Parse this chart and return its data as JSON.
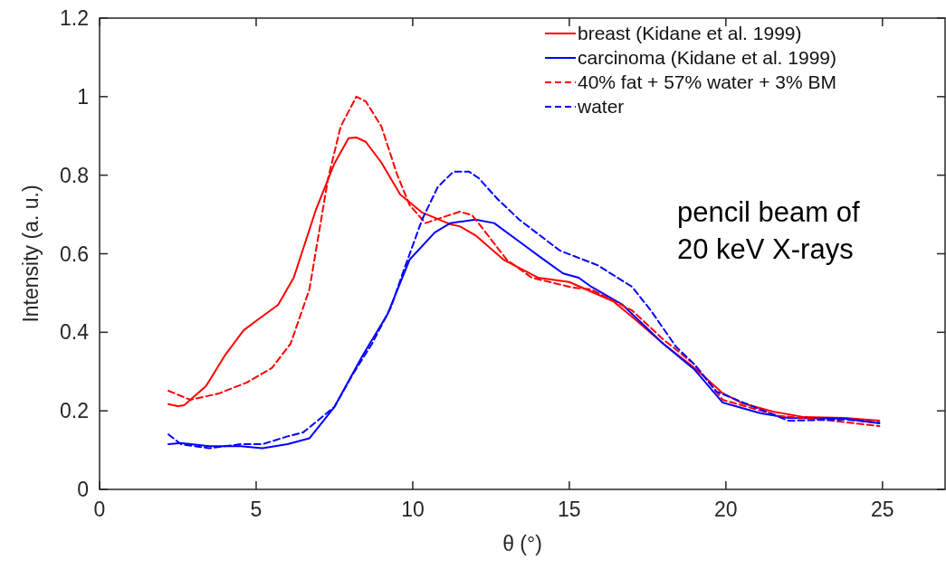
{
  "chart_data": {
    "type": "line",
    "xlabel": "θ (°)",
    "ylabel": "Intensity (a. u.)",
    "xlim": [
      0,
      27
    ],
    "ylim": [
      0,
      1.2
    ],
    "xticks": [
      0,
      5,
      10,
      15,
      20,
      25
    ],
    "yticks": [
      0,
      0.2,
      0.4,
      0.6,
      0.8,
      1,
      1.2
    ],
    "grid": false,
    "legend": "top right",
    "marker": "none",
    "annotations": [
      "pencil beam of\n20 keV X-rays"
    ],
    "series": [
      {
        "name": "breast (Kidane et al. 1999)",
        "color": "#ff0000",
        "line_style": "solid",
        "x": [
          2.2,
          2.5,
          2.7,
          3.4,
          4,
          4.6,
          5,
          5.7,
          6.2,
          6.9,
          7.5,
          7.95,
          8.2,
          8.5,
          9,
          9.6,
          10.3,
          11.2,
          11.5,
          12,
          12.9,
          14,
          15,
          16.4,
          17.1,
          18,
          19,
          19.9,
          20.5,
          21.5,
          22.5,
          23.8,
          24.9
        ],
        "values": [
          0.217,
          0.212,
          0.214,
          0.263,
          0.341,
          0.405,
          0.429,
          0.47,
          0.539,
          0.71,
          0.83,
          0.894,
          0.896,
          0.885,
          0.832,
          0.751,
          0.705,
          0.675,
          0.67,
          0.647,
          0.585,
          0.539,
          0.528,
          0.479,
          0.433,
          0.371,
          0.309,
          0.245,
          0.22,
          0.198,
          0.184,
          0.182,
          0.175
        ]
      },
      {
        "name": "carcinoma (Kidane et al. 1999)",
        "color": "#0000ff",
        "line_style": "solid",
        "x": [
          2.2,
          2.6,
          3.5,
          4.5,
          5.2,
          6,
          6.7,
          7.5,
          8.4,
          9.2,
          9.9,
          10.7,
          11.2,
          12,
          12.6,
          13.4,
          14.1,
          14.8,
          15.3,
          15.7,
          16.7,
          18,
          19,
          19.9,
          21.1,
          22,
          23.8,
          24.9
        ],
        "values": [
          0.115,
          0.118,
          0.11,
          0.11,
          0.105,
          0.115,
          0.13,
          0.21,
          0.341,
          0.447,
          0.585,
          0.654,
          0.678,
          0.687,
          0.678,
          0.631,
          0.59,
          0.55,
          0.539,
          0.516,
          0.47,
          0.371,
          0.305,
          0.221,
          0.194,
          0.182,
          0.18,
          0.168
        ]
      },
      {
        "name": "40% fat + 57% water + 3% BM",
        "color": "#ff0000",
        "line_style": "dashed",
        "x": [
          2.2,
          2.9,
          3.8,
          4.7,
          5.5,
          6.1,
          6.7,
          7.3,
          7.7,
          8.2,
          8.5,
          9,
          9.5,
          9.9,
          10.4,
          11,
          11.5,
          11.9,
          12.4,
          13,
          13.8,
          15.1,
          15.7,
          17,
          18,
          19,
          19.9,
          21.7,
          22.8,
          24.9
        ],
        "values": [
          0.251,
          0.228,
          0.244,
          0.272,
          0.309,
          0.371,
          0.509,
          0.793,
          0.924,
          1,
          0.988,
          0.924,
          0.802,
          0.724,
          0.678,
          0.694,
          0.707,
          0.698,
          0.647,
          0.585,
          0.539,
          0.514,
          0.509,
          0.456,
          0.382,
          0.318,
          0.228,
          0.187,
          0.18,
          0.161
        ]
      },
      {
        "name": "water",
        "color": "#0000ff",
        "line_style": "dashed",
        "x": [
          2.2,
          2.6,
          3.5,
          4.5,
          5.2,
          6,
          6.5,
          7.5,
          8.1,
          8.7,
          9.3,
          9.7,
          10.3,
          10.8,
          11.3,
          11.8,
          12.1,
          12.7,
          13.4,
          14.7,
          15.9,
          17,
          17.6,
          18.4,
          19,
          19.7,
          20.9,
          22,
          23.8,
          24.9
        ],
        "values": [
          0.14,
          0.115,
          0.105,
          0.115,
          0.115,
          0.135,
          0.145,
          0.21,
          0.295,
          0.371,
          0.463,
          0.555,
          0.687,
          0.77,
          0.809,
          0.809,
          0.793,
          0.74,
          0.687,
          0.608,
          0.571,
          0.516,
          0.456,
          0.364,
          0.318,
          0.249,
          0.21,
          0.175,
          0.178,
          0.17
        ]
      }
    ]
  }
}
